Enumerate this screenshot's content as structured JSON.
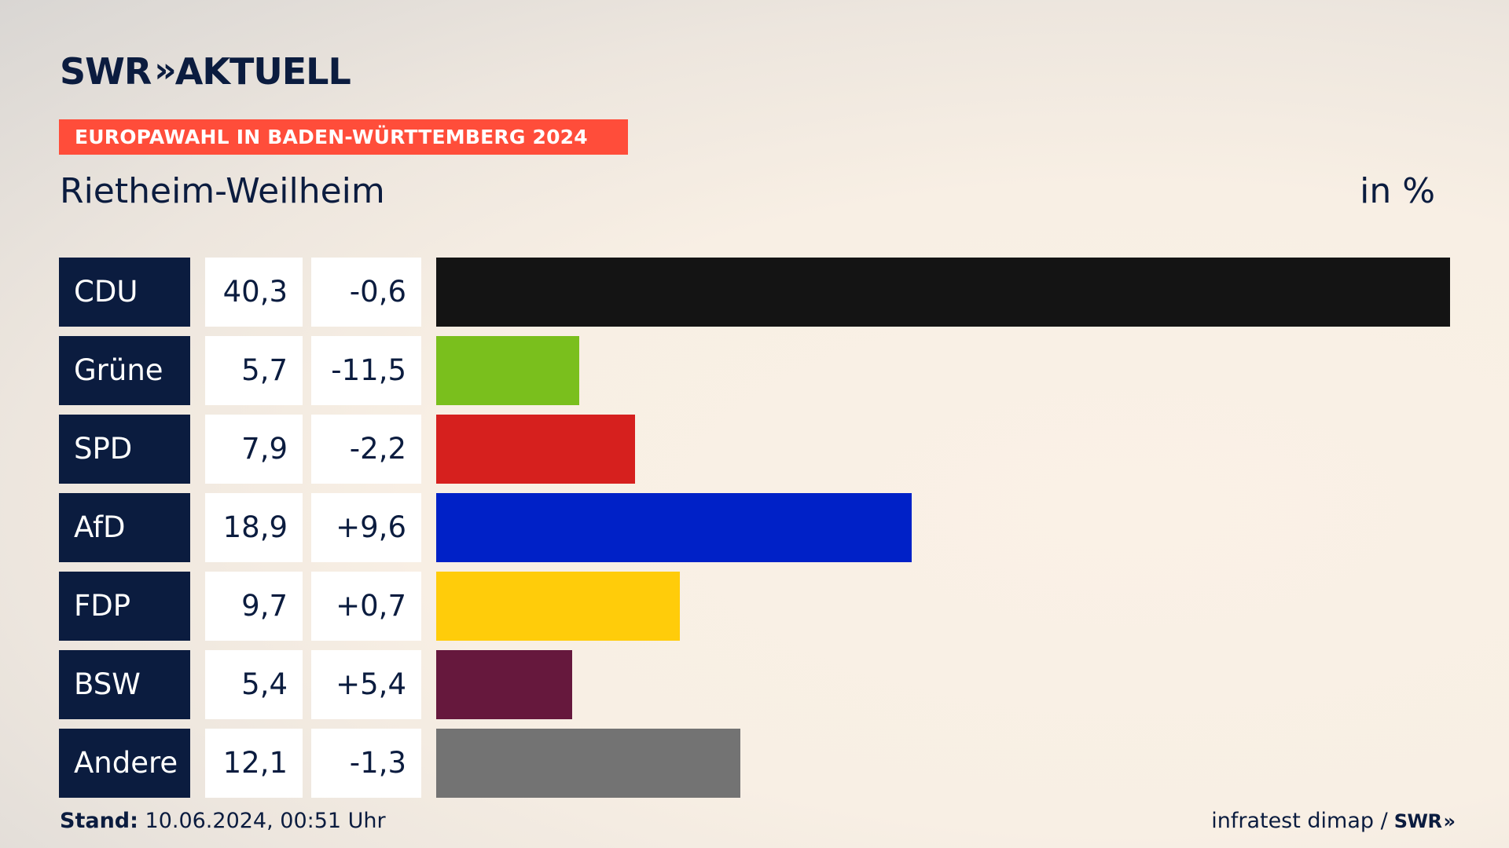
{
  "header": {
    "logo_text": "SWR",
    "logo_chevrons": "»",
    "logo_suffix": "AKTUELL",
    "banner": "EUROPAWAHL IN BADEN-WÜRTTEMBERG 2024",
    "region": "Rietheim-Weilheim",
    "unit": "in %"
  },
  "colors": {
    "navy": "#0b1c3f",
    "banner": "#ff4d3a"
  },
  "chart_data": {
    "type": "bar",
    "orientation": "horizontal",
    "title": "Europawahl in Baden-Württemberg 2024 – Rietheim-Weilheim",
    "ylabel": "in %",
    "xlim": [
      0,
      40.3
    ],
    "categories": [
      "CDU",
      "Grüne",
      "SPD",
      "AfD",
      "FDP",
      "BSW",
      "Andere"
    ],
    "values": [
      40.3,
      5.7,
      7.9,
      18.9,
      9.7,
      5.4,
      12.1
    ],
    "value_labels": [
      "40,3",
      "5,7",
      "7,9",
      "18,9",
      "9,7",
      "5,4",
      "12,1"
    ],
    "changes": [
      -0.6,
      -11.5,
      -2.2,
      9.6,
      0.7,
      5.4,
      -1.3
    ],
    "change_labels": [
      "-0,6",
      "-11,5",
      "-2,2",
      "+9,6",
      "+0,7",
      "+5,4",
      "-1,3"
    ],
    "bar_colors": [
      "#141414",
      "#7abf1d",
      "#d6201e",
      "#0021c7",
      "#ffcc0a",
      "#66183d",
      "#737373"
    ]
  },
  "footer": {
    "stand_label": "Stand:",
    "stand_value": "10.06.2024, 00:51 Uhr",
    "source": "infratest dimap /",
    "source_logo": "SWR",
    "source_chevrons": "»"
  }
}
